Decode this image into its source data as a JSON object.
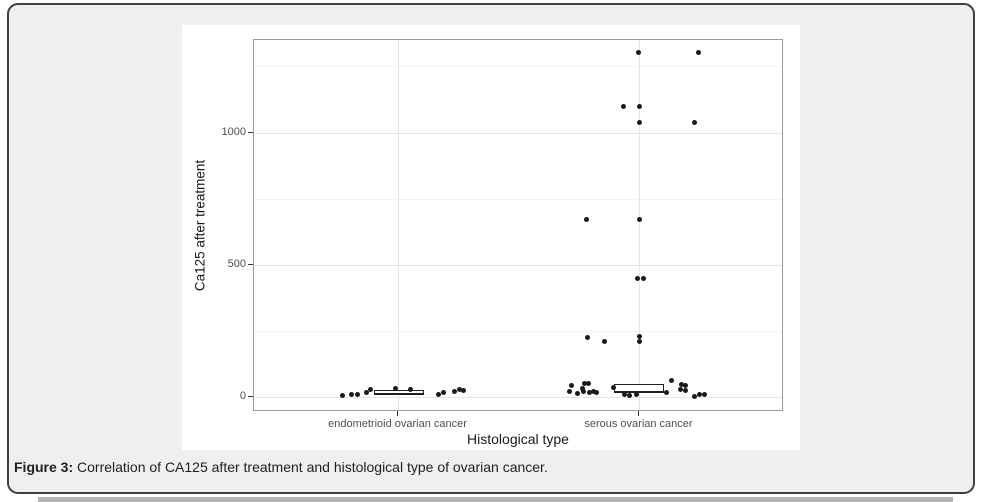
{
  "caption": {
    "prefix": "Figure 3:",
    "text": " Correlation of CA125 after treatment and histological type of ovarian cancer."
  },
  "chart_data": {
    "type": "scatter",
    "subtype": "jitter-points-with-boxplots",
    "title": "",
    "xlabel": "Histological type",
    "ylabel": "Ca125 after treatment",
    "categories": [
      "endometrioid ovarian cancer",
      "serous ovarian cancer"
    ],
    "ylim": [
      -56,
      1352
    ],
    "yticks": [
      0,
      500,
      1000
    ],
    "yticks_minor": [
      250,
      750,
      1250
    ],
    "grid": "horizontal major+minor light gray; vertical major at category centers",
    "legend_position": "none",
    "boxplots": [
      {
        "category": "endometrioid ovarian cancer",
        "q1": 9,
        "median": 16,
        "q3": 27
      },
      {
        "category": "serous ovarian cancer",
        "q1": 16,
        "median": 24,
        "q3": 51
      }
    ],
    "series": [
      {
        "name": "endometrioid ovarian cancer",
        "points": [
          [
            -56,
            5
          ],
          [
            -47,
            9
          ],
          [
            -41,
            9
          ],
          [
            -32,
            16
          ],
          [
            -28,
            31
          ],
          [
            -3,
            33
          ],
          [
            12,
            30
          ],
          [
            40,
            12
          ],
          [
            45,
            16
          ],
          [
            56,
            20
          ],
          [
            61,
            30
          ],
          [
            65,
            26
          ]
        ]
      },
      {
        "name": "serous ovarian cancer",
        "points": [
          [
            -1,
            1306
          ],
          [
            59,
            1306
          ],
          [
            -16,
            1101
          ],
          [
            0,
            1101
          ],
          [
            0,
            1040
          ],
          [
            55,
            1038
          ],
          [
            -53,
            673
          ],
          [
            0,
            673
          ],
          [
            -2,
            451
          ],
          [
            4,
            451
          ],
          [
            -52,
            227
          ],
          [
            -35,
            210
          ],
          [
            0,
            229
          ],
          [
            0,
            211
          ],
          [
            -68,
            44
          ],
          [
            -70,
            21
          ],
          [
            -62,
            13
          ],
          [
            -57,
            32
          ],
          [
            -55,
            51
          ],
          [
            -51,
            51
          ],
          [
            -56,
            21
          ],
          [
            -50,
            16
          ],
          [
            -46,
            21
          ],
          [
            -43,
            19
          ],
          [
            -26,
            38
          ],
          [
            -15,
            9
          ],
          [
            -10,
            6
          ],
          [
            -3,
            9
          ],
          [
            27,
            19
          ],
          [
            32,
            63
          ],
          [
            42,
            49
          ],
          [
            46,
            45
          ],
          [
            41,
            28
          ],
          [
            46,
            24
          ],
          [
            55,
            1
          ],
          [
            60,
            9
          ],
          [
            65,
            9
          ]
        ]
      }
    ]
  }
}
